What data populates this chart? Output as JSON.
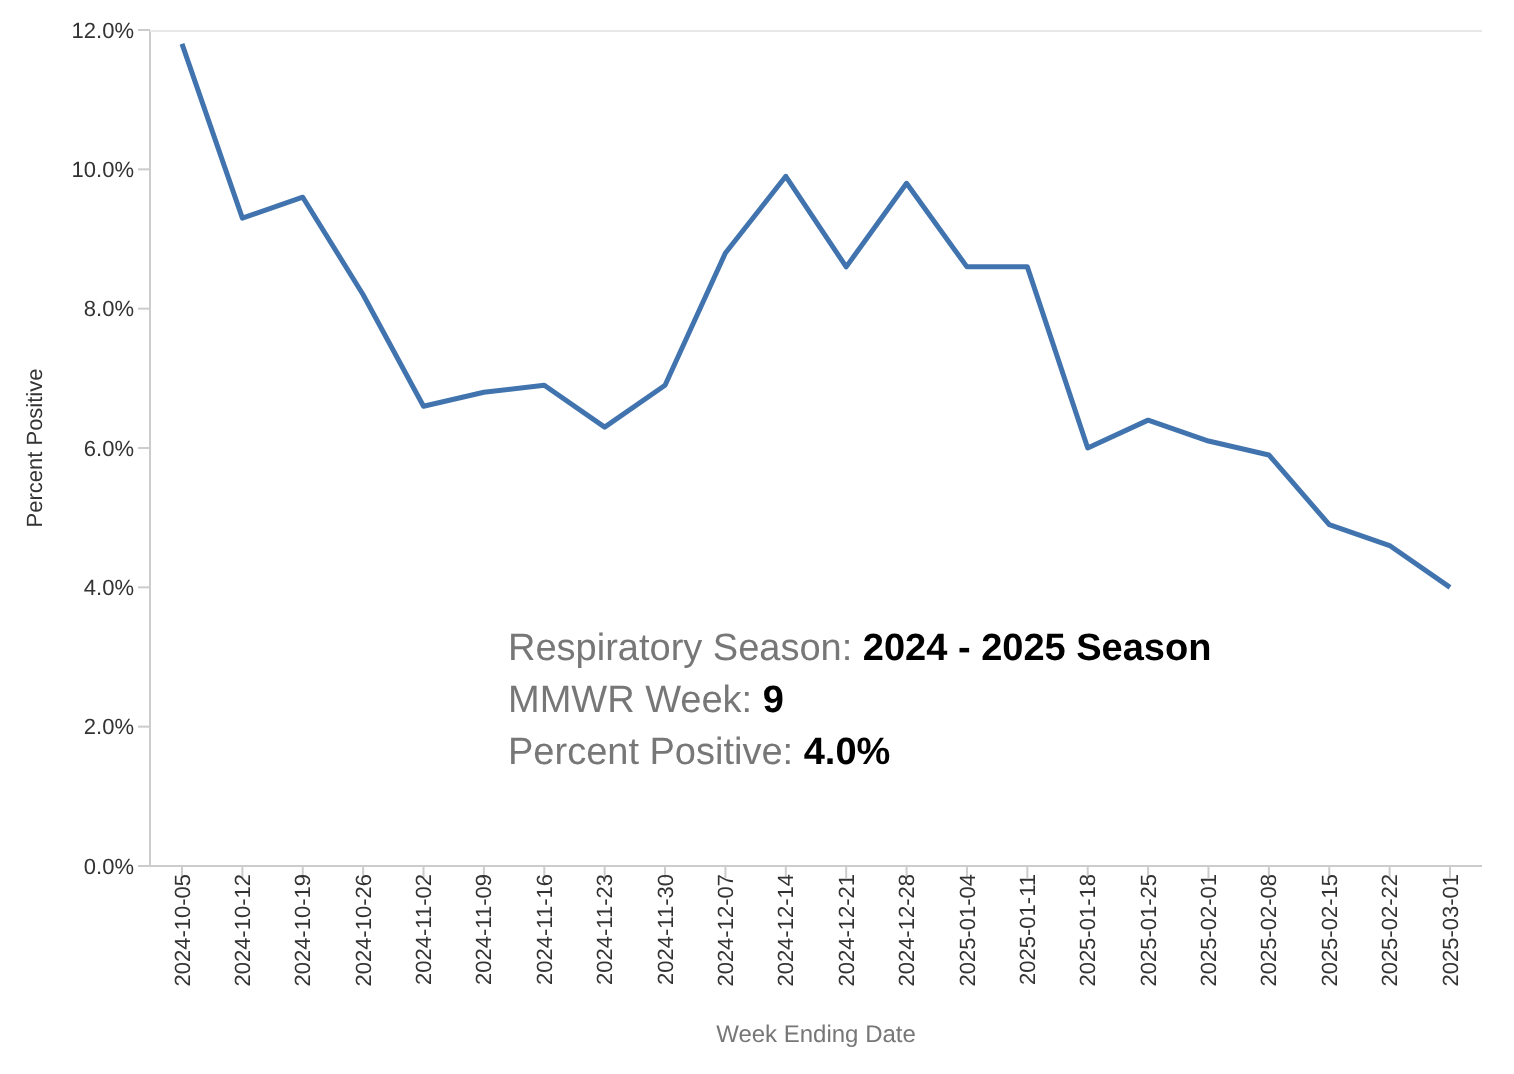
{
  "chart_data": {
    "type": "line",
    "xlabel": "Week Ending Date",
    "ylabel": "Percent Positive",
    "categories": [
      "2024-10-05",
      "2024-10-12",
      "2024-10-19",
      "2024-10-26",
      "2024-11-02",
      "2024-11-09",
      "2024-11-16",
      "2024-11-23",
      "2024-11-30",
      "2024-12-07",
      "2024-12-14",
      "2024-12-21",
      "2024-12-28",
      "2025-01-04",
      "2025-01-11",
      "2025-01-18",
      "2025-01-25",
      "2025-02-01",
      "2025-02-08",
      "2025-02-15",
      "2025-02-22",
      "2025-03-01"
    ],
    "series": [
      {
        "color": "#4174ae",
        "values": [
          11.8,
          9.3,
          9.6,
          8.2,
          6.6,
          6.8,
          6.9,
          6.3,
          6.9,
          8.8,
          9.9,
          8.6,
          9.8,
          8.6,
          8.6,
          6.0,
          6.4,
          6.1,
          5.9,
          4.9,
          4.6,
          4.0
        ]
      }
    ],
    "ylim": [
      0,
      12
    ],
    "yticks": [
      {
        "value": 0,
        "label": "0.0%"
      },
      {
        "value": 2,
        "label": "2.0%"
      },
      {
        "value": 4,
        "label": "4.0%"
      },
      {
        "value": 6,
        "label": "6.0%"
      },
      {
        "value": 8,
        "label": "8.0%"
      },
      {
        "value": 10,
        "label": "10.0%"
      },
      {
        "value": 12,
        "label": "12.0%"
      }
    ],
    "annotations": [
      "Respiratory Season: 2024 - 2025 Season",
      "MMWR Week: 9",
      "Percent Positive: 4.0%"
    ],
    "grid": false,
    "legend": false,
    "marker": "none",
    "line_style": "solid"
  }
}
